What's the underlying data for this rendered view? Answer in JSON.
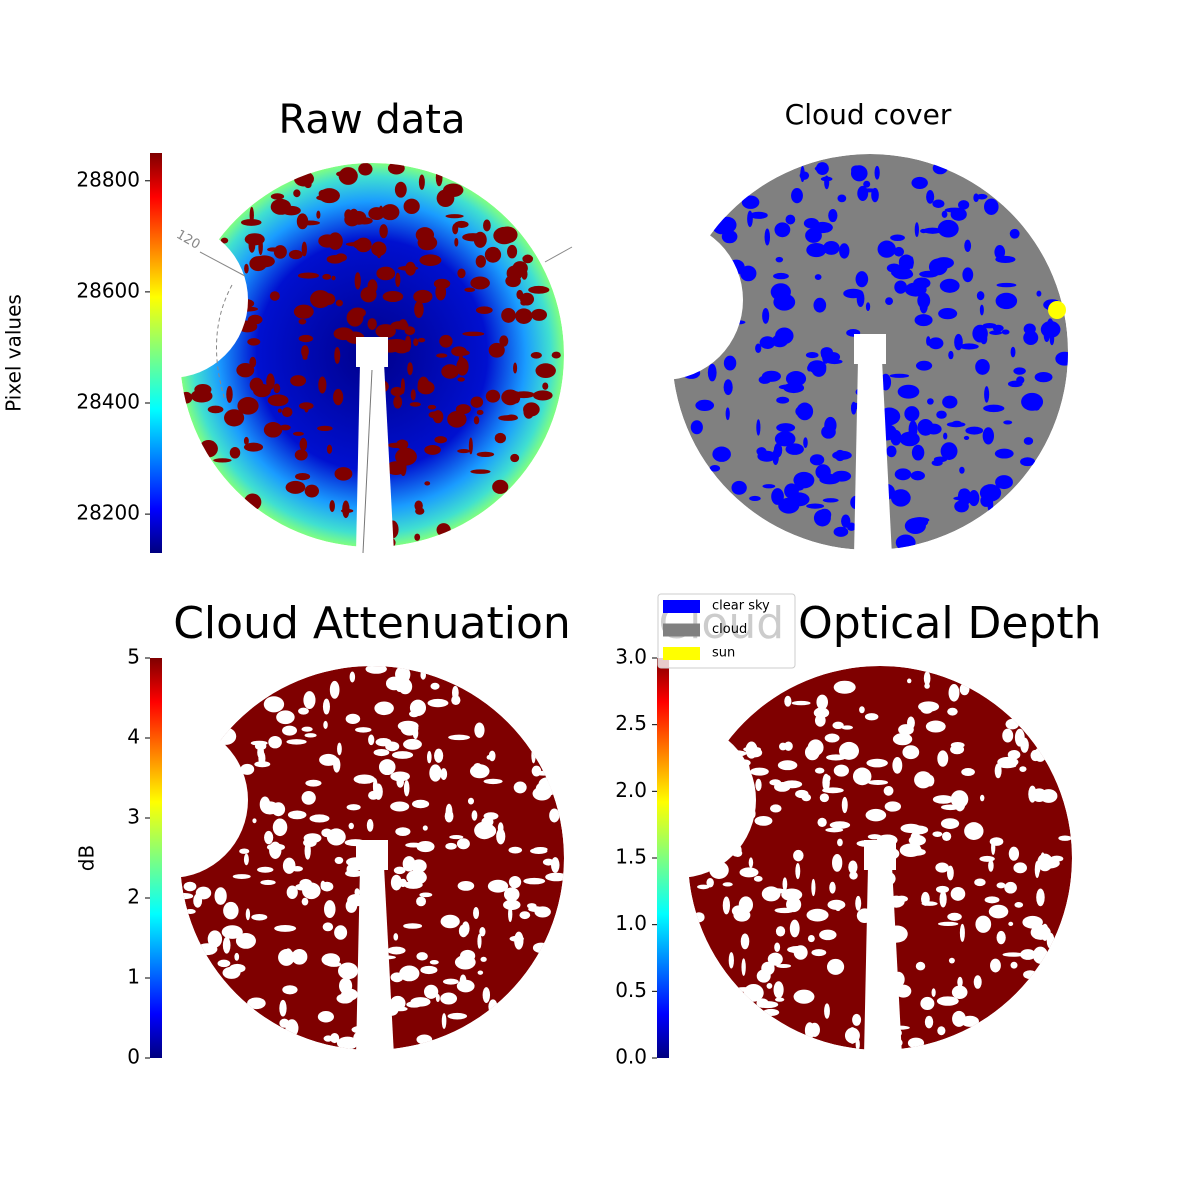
{
  "chart_data": [
    {
      "type": "image",
      "title": "Raw data",
      "colormap": "jet",
      "ylabel": "Pixel values",
      "ylim": [
        28130,
        28850
      ],
      "yticks": [
        28200,
        28400,
        28600,
        28800
      ],
      "annotations": [
        "120"
      ]
    },
    {
      "type": "image",
      "title": "Cloud cover",
      "series": [
        {
          "name": "clear sky",
          "color": "#0000ff"
        },
        {
          "name": "cloud",
          "color": "#808080"
        },
        {
          "name": "sun",
          "color": "#ffff00"
        }
      ]
    },
    {
      "type": "image",
      "title": "Cloud Attenuation",
      "colormap": "jet",
      "ylabel": "dB",
      "ylim": [
        0,
        5
      ],
      "yticks": [
        0,
        1,
        2,
        3,
        4,
        5
      ]
    },
    {
      "type": "image",
      "title": "Cloud Optical Depth",
      "colormap": "jet",
      "ylim": [
        0,
        3
      ],
      "yticks": [
        {
          "value": 0,
          "label": "0.0"
        },
        {
          "value": 0.5,
          "label": "0.5"
        },
        {
          "value": 1,
          "label": "1.0"
        },
        {
          "value": 1.5,
          "label": "1.5"
        },
        {
          "value": 2,
          "label": "2.0"
        },
        {
          "value": 2.5,
          "label": "2.5"
        },
        {
          "value": 3,
          "label": "3.0"
        }
      ]
    }
  ]
}
